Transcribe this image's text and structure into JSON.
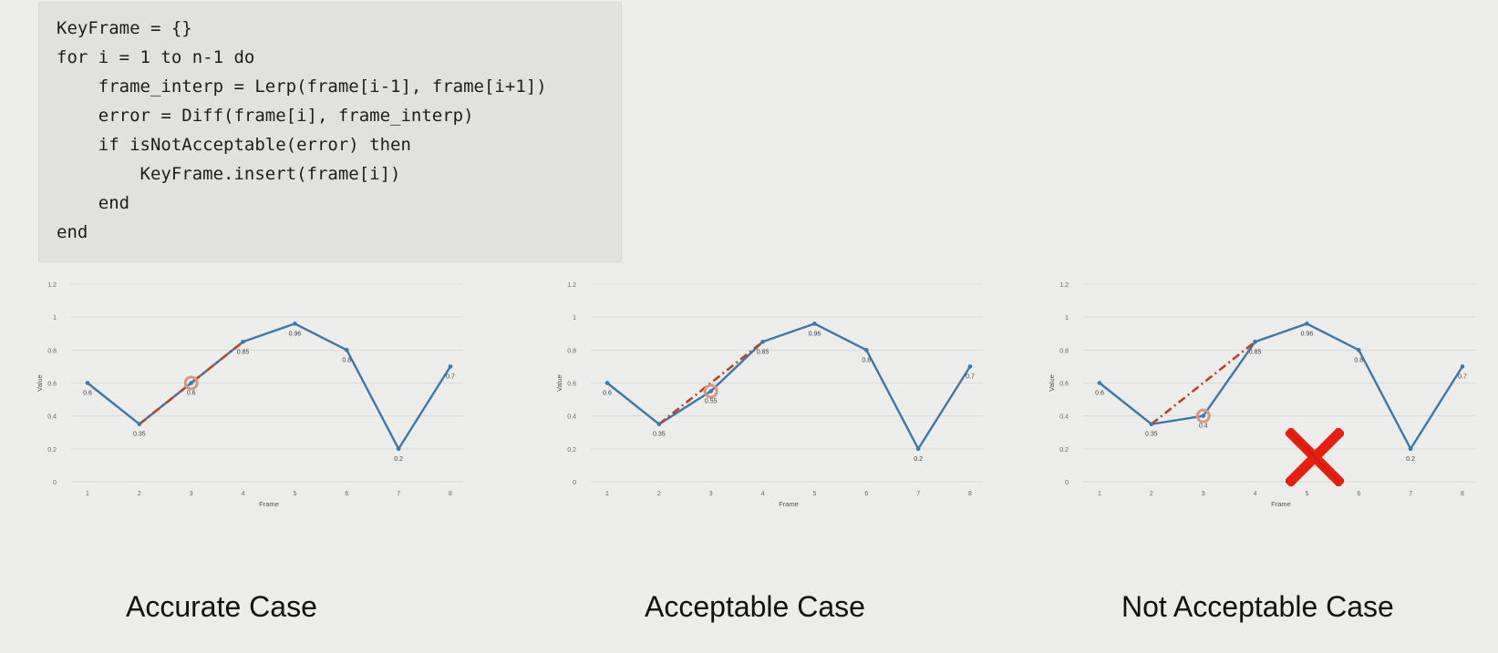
{
  "code": {
    "lines": [
      "KeyFrame = {}",
      "for i = 1 to n-1 do",
      "    frame_interp = Lerp(frame[i-1], frame[i+1])",
      "    error = Diff(frame[i], frame_interp)",
      "    if isNotAcceptable(error) then",
      "        KeyFrame.insert(frame[i])",
      "    end",
      "end"
    ]
  },
  "captions": {
    "accurate": "Accurate Case",
    "acceptable": "Acceptable Case",
    "not_acceptable": "Not Acceptable Case"
  },
  "colors": {
    "series": "#3d78a8",
    "interp": "#b5452a",
    "highlight": "#d29a86",
    "cross": "#e81e0e"
  },
  "chart_data": [
    {
      "type": "line",
      "x": [
        1,
        2,
        3,
        4,
        5,
        6,
        7,
        8
      ],
      "values": [
        0.6,
        0.35,
        0.6,
        0.85,
        0.96,
        0.8,
        0.2,
        0.7
      ],
      "labels": [
        "0.6",
        "0.35",
        "0.6",
        "0.85",
        "0.96",
        "0.8",
        "0.2",
        "0.7"
      ],
      "xlabel": "Frame",
      "ylabel": "Value",
      "ylim": [
        0,
        1.2
      ],
      "yticks": [
        "0",
        "0.2",
        "0.4",
        "0.6",
        "0.8",
        "1",
        "1.2"
      ],
      "xticks": [
        "1",
        "2",
        "3",
        "4",
        "5",
        "6",
        "7",
        "8"
      ],
      "interp_line": {
        "from": [
          2,
          0.35
        ],
        "to": [
          4,
          0.85
        ]
      },
      "highlight_index": 2,
      "grid": true
    },
    {
      "type": "line",
      "x": [
        1,
        2,
        3,
        4,
        5,
        6,
        7,
        8
      ],
      "values": [
        0.6,
        0.35,
        0.55,
        0.85,
        0.96,
        0.8,
        0.2,
        0.7
      ],
      "labels": [
        "0.6",
        "0.35",
        "0.55",
        "0.85",
        "0.96",
        "0.8",
        "0.2",
        "0.7"
      ],
      "xlabel": "Frame",
      "ylabel": "Value",
      "ylim": [
        0,
        1.2
      ],
      "yticks": [
        "0",
        "0.2",
        "0.4",
        "0.6",
        "0.8",
        "1",
        "1.2"
      ],
      "xticks": [
        "1",
        "2",
        "3",
        "4",
        "5",
        "6",
        "7",
        "8"
      ],
      "interp_line": {
        "from": [
          2,
          0.35
        ],
        "to": [
          4,
          0.85
        ]
      },
      "highlight_index": 2,
      "grid": true
    },
    {
      "type": "line",
      "x": [
        1,
        2,
        3,
        4,
        5,
        6,
        7,
        8
      ],
      "values": [
        0.6,
        0.35,
        0.4,
        0.85,
        0.96,
        0.8,
        0.2,
        0.7
      ],
      "labels": [
        "0.6",
        "0.35",
        "0.4",
        "0.85",
        "0.96",
        "0.8",
        "0.2",
        "0.7"
      ],
      "xlabel": "Frame",
      "ylabel": "Value",
      "ylim": [
        0,
        1.2
      ],
      "yticks": [
        "0",
        "0.2",
        "0.4",
        "0.6",
        "0.8",
        "1",
        "1.2"
      ],
      "xticks": [
        "1",
        "2",
        "3",
        "4",
        "5",
        "6",
        "7",
        "8"
      ],
      "interp_line": {
        "from": [
          2,
          0.35
        ],
        "to": [
          4,
          0.85
        ]
      },
      "highlight_index": 2,
      "grid": true,
      "rejected": true
    }
  ]
}
